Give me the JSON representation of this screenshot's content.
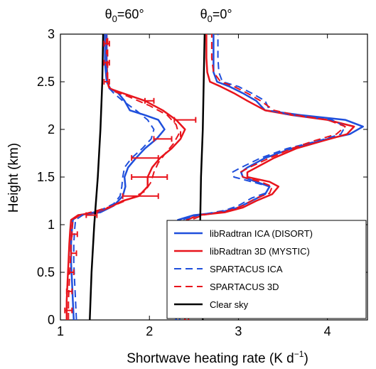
{
  "chart_data": {
    "type": "line",
    "xlabel": "Shortwave heating rate (K d",
    "xlabel_sup": "−1",
    "xlabel_end": ")",
    "ylabel": "Height (km)",
    "xlim": [
      1,
      4.45
    ],
    "ylim": [
      0,
      3
    ],
    "xticks": [
      1,
      2,
      3,
      4
    ],
    "yticks": [
      0,
      0.5,
      1,
      1.5,
      2,
      2.5,
      3
    ],
    "legend_position": "bottom-right",
    "annotations": [
      {
        "theta": "θ",
        "sub": "0",
        "rest": "=60°",
        "x": 1.72
      },
      {
        "theta": "θ",
        "sub": "0",
        "rest": "=0°",
        "x": 2.75
      }
    ],
    "series": [
      {
        "name": "libRadtran ICA (DISORT)",
        "color": "#1f4fdc",
        "dash": "solid",
        "width": 2.5,
        "profiles": [
          [
            [
              1.15,
              0.0
            ],
            [
              1.14,
              0.2
            ],
            [
              1.13,
              0.4
            ],
            [
              1.12,
              0.6
            ],
            [
              1.12,
              0.8
            ],
            [
              1.13,
              0.95
            ],
            [
              1.14,
              1.05
            ],
            [
              1.2,
              1.1
            ],
            [
              1.45,
              1.13
            ],
            [
              1.6,
              1.2
            ],
            [
              1.7,
              1.3
            ],
            [
              1.73,
              1.4
            ],
            [
              1.72,
              1.5
            ],
            [
              1.76,
              1.6
            ],
            [
              1.85,
              1.7
            ],
            [
              1.95,
              1.8
            ],
            [
              2.08,
              1.9
            ],
            [
              2.17,
              2.0
            ],
            [
              2.1,
              2.1
            ],
            [
              1.95,
              2.15
            ],
            [
              1.78,
              2.2
            ],
            [
              1.72,
              2.3
            ],
            [
              1.65,
              2.38
            ],
            [
              1.56,
              2.43
            ],
            [
              1.52,
              2.5
            ],
            [
              1.5,
              2.7
            ],
            [
              1.5,
              3.0
            ]
          ],
          [
            [
              2.3,
              0.0
            ],
            [
              2.29,
              0.2
            ],
            [
              2.29,
              0.4
            ],
            [
              2.29,
              0.6
            ],
            [
              2.29,
              0.8
            ],
            [
              2.3,
              0.95
            ],
            [
              2.32,
              1.05
            ],
            [
              2.5,
              1.1
            ],
            [
              2.8,
              1.13
            ],
            [
              3.0,
              1.18
            ],
            [
              3.15,
              1.25
            ],
            [
              3.3,
              1.32
            ],
            [
              3.35,
              1.4
            ],
            [
              3.2,
              1.45
            ],
            [
              3.05,
              1.5
            ],
            [
              3.03,
              1.55
            ],
            [
              3.1,
              1.6
            ],
            [
              3.3,
              1.7
            ],
            [
              3.6,
              1.8
            ],
            [
              4.0,
              1.9
            ],
            [
              4.25,
              1.95
            ],
            [
              4.4,
              2.03
            ],
            [
              4.2,
              2.1
            ],
            [
              3.7,
              2.15
            ],
            [
              3.3,
              2.2
            ],
            [
              3.2,
              2.3
            ],
            [
              3.05,
              2.38
            ],
            [
              2.9,
              2.45
            ],
            [
              2.76,
              2.5
            ],
            [
              2.72,
              2.6
            ],
            [
              2.72,
              2.75
            ],
            [
              2.72,
              3.0
            ]
          ]
        ]
      },
      {
        "name": "libRadtran 3D (MYSTIC)",
        "color": "#e8141c",
        "dash": "solid",
        "width": 2.5,
        "profiles": [
          [
            [
              1.07,
              0.0
            ],
            [
              1.07,
              0.2
            ],
            [
              1.08,
              0.4
            ],
            [
              1.09,
              0.6
            ],
            [
              1.1,
              0.8
            ],
            [
              1.11,
              0.95
            ],
            [
              1.12,
              1.05
            ],
            [
              1.2,
              1.1
            ],
            [
              1.4,
              1.13
            ],
            [
              1.55,
              1.18
            ],
            [
              1.7,
              1.25
            ],
            [
              1.88,
              1.3
            ],
            [
              1.98,
              1.4
            ],
            [
              1.98,
              1.5
            ],
            [
              2.03,
              1.6
            ],
            [
              2.12,
              1.7
            ],
            [
              2.25,
              1.8
            ],
            [
              2.35,
              1.9
            ],
            [
              2.4,
              2.0
            ],
            [
              2.3,
              2.1
            ],
            [
              2.15,
              2.2
            ],
            [
              1.95,
              2.3
            ],
            [
              1.7,
              2.38
            ],
            [
              1.55,
              2.43
            ],
            [
              1.53,
              2.5
            ],
            [
              1.52,
              2.7
            ],
            [
              1.52,
              3.0
            ]
          ],
          [
            [
              2.4,
              0.0
            ],
            [
              2.39,
              0.2
            ],
            [
              2.39,
              0.4
            ],
            [
              2.4,
              0.6
            ],
            [
              2.4,
              0.8
            ],
            [
              2.41,
              0.95
            ],
            [
              2.42,
              1.05
            ],
            [
              2.55,
              1.1
            ],
            [
              2.85,
              1.13
            ],
            [
              3.05,
              1.18
            ],
            [
              3.2,
              1.25
            ],
            [
              3.38,
              1.32
            ],
            [
              3.45,
              1.4
            ],
            [
              3.35,
              1.45
            ],
            [
              3.1,
              1.5
            ],
            [
              3.1,
              1.55
            ],
            [
              3.2,
              1.6
            ],
            [
              3.4,
              1.7
            ],
            [
              3.65,
              1.8
            ],
            [
              3.95,
              1.88
            ],
            [
              4.22,
              1.95
            ],
            [
              4.3,
              2.03
            ],
            [
              4.0,
              2.1
            ],
            [
              3.6,
              2.15
            ],
            [
              3.3,
              2.2
            ],
            [
              3.1,
              2.3
            ],
            [
              2.95,
              2.38
            ],
            [
              2.8,
              2.45
            ],
            [
              2.68,
              2.5
            ],
            [
              2.65,
              2.6
            ],
            [
              2.64,
              2.75
            ],
            [
              2.64,
              3.0
            ]
          ]
        ]
      },
      {
        "name": "SPARTACUS ICA",
        "color": "#1f4fdc",
        "dash": "10,6",
        "width": 2,
        "profiles": [
          [
            [
              1.18,
              0.0
            ],
            [
              1.17,
              0.2
            ],
            [
              1.16,
              0.4
            ],
            [
              1.15,
              0.6
            ],
            [
              1.15,
              0.8
            ],
            [
              1.16,
              0.95
            ],
            [
              1.17,
              1.05
            ],
            [
              1.25,
              1.1
            ],
            [
              1.45,
              1.15
            ],
            [
              1.6,
              1.22
            ],
            [
              1.67,
              1.3
            ],
            [
              1.69,
              1.4
            ],
            [
              1.7,
              1.5
            ],
            [
              1.72,
              1.6
            ],
            [
              1.8,
              1.7
            ],
            [
              1.92,
              1.8
            ],
            [
              2.02,
              1.9
            ],
            [
              2.05,
              2.0
            ],
            [
              1.98,
              2.1
            ],
            [
              1.85,
              2.2
            ],
            [
              1.7,
              2.3
            ],
            [
              1.6,
              2.38
            ],
            [
              1.55,
              2.43
            ],
            [
              1.52,
              2.5
            ],
            [
              1.52,
              2.7
            ],
            [
              1.52,
              3.0
            ]
          ],
          [
            [
              2.34,
              0.0
            ],
            [
              2.33,
              0.2
            ],
            [
              2.32,
              0.4
            ],
            [
              2.32,
              0.6
            ],
            [
              2.32,
              0.8
            ],
            [
              2.34,
              0.95
            ],
            [
              2.36,
              1.05
            ],
            [
              2.55,
              1.1
            ],
            [
              2.85,
              1.15
            ],
            [
              3.0,
              1.2
            ],
            [
              3.15,
              1.28
            ],
            [
              3.3,
              1.33
            ],
            [
              3.35,
              1.4
            ],
            [
              3.15,
              1.45
            ],
            [
              2.95,
              1.5
            ],
            [
              2.93,
              1.55
            ],
            [
              3.03,
              1.6
            ],
            [
              3.25,
              1.7
            ],
            [
              3.55,
              1.8
            ],
            [
              3.9,
              1.88
            ],
            [
              4.15,
              1.95
            ],
            [
              4.2,
              2.03
            ],
            [
              4.05,
              2.1
            ],
            [
              3.6,
              2.15
            ],
            [
              3.35,
              2.2
            ],
            [
              3.3,
              2.3
            ],
            [
              3.15,
              2.38
            ],
            [
              3.0,
              2.45
            ],
            [
              2.82,
              2.5
            ],
            [
              2.78,
              2.6
            ],
            [
              2.77,
              2.75
            ],
            [
              2.77,
              3.0
            ]
          ]
        ]
      },
      {
        "name": "SPARTACUS 3D",
        "color": "#e8141c",
        "dash": "10,6",
        "width": 2,
        "profiles": [
          [
            [
              1.09,
              0.0
            ],
            [
              1.09,
              0.2
            ],
            [
              1.1,
              0.4
            ],
            [
              1.11,
              0.6
            ],
            [
              1.12,
              0.8
            ],
            [
              1.13,
              0.95
            ],
            [
              1.14,
              1.05
            ],
            [
              1.22,
              1.1
            ],
            [
              1.42,
              1.15
            ],
            [
              1.6,
              1.2
            ],
            [
              1.8,
              1.28
            ],
            [
              1.95,
              1.35
            ],
            [
              2.02,
              1.45
            ],
            [
              2.05,
              1.55
            ],
            [
              2.1,
              1.65
            ],
            [
              2.18,
              1.75
            ],
            [
              2.27,
              1.85
            ],
            [
              2.33,
              1.95
            ],
            [
              2.3,
              2.05
            ],
            [
              2.2,
              2.15
            ],
            [
              2.0,
              2.25
            ],
            [
              1.75,
              2.35
            ],
            [
              1.6,
              2.4
            ],
            [
              1.54,
              2.45
            ],
            [
              1.53,
              2.5
            ],
            [
              1.53,
              2.7
            ],
            [
              1.53,
              3.0
            ]
          ],
          [
            [
              2.44,
              0.0
            ],
            [
              2.43,
              0.2
            ],
            [
              2.43,
              0.4
            ],
            [
              2.44,
              0.6
            ],
            [
              2.45,
              0.8
            ],
            [
              2.46,
              0.95
            ],
            [
              2.47,
              1.05
            ],
            [
              2.6,
              1.1
            ],
            [
              2.9,
              1.15
            ],
            [
              3.05,
              1.2
            ],
            [
              3.2,
              1.28
            ],
            [
              3.35,
              1.33
            ],
            [
              3.38,
              1.4
            ],
            [
              3.25,
              1.45
            ],
            [
              3.05,
              1.5
            ],
            [
              3.02,
              1.55
            ],
            [
              3.12,
              1.6
            ],
            [
              3.35,
              1.7
            ],
            [
              3.6,
              1.8
            ],
            [
              3.85,
              1.88
            ],
            [
              4.1,
              1.95
            ],
            [
              4.2,
              2.03
            ],
            [
              4.0,
              2.1
            ],
            [
              3.65,
              2.15
            ],
            [
              3.4,
              2.2
            ],
            [
              3.25,
              2.3
            ],
            [
              3.1,
              2.38
            ],
            [
              2.95,
              2.45
            ],
            [
              2.8,
              2.5
            ],
            [
              2.72,
              2.6
            ],
            [
              2.7,
              2.75
            ],
            [
              2.7,
              3.0
            ]
          ]
        ]
      },
      {
        "name": "Clear sky",
        "color": "#000000",
        "dash": "solid",
        "width": 2.5,
        "profiles": [
          [
            [
              1.33,
              0.0
            ],
            [
              1.35,
              0.5
            ],
            [
              1.38,
              1.0
            ],
            [
              1.42,
              1.5
            ],
            [
              1.45,
              2.0
            ],
            [
              1.47,
              2.5
            ],
            [
              1.48,
              3.0
            ]
          ],
          [
            [
              2.6,
              0.0
            ],
            [
              2.58,
              0.5
            ],
            [
              2.57,
              1.0
            ],
            [
              2.58,
              1.5
            ],
            [
              2.6,
              2.0
            ],
            [
              2.61,
              2.5
            ],
            [
              2.62,
              3.0
            ]
          ]
        ]
      }
    ],
    "error_bars": {
      "color": "#e8141c",
      "points": [
        {
          "x": 1.09,
          "y": 0.1,
          "err": 0.04
        },
        {
          "x": 1.1,
          "y": 0.3,
          "err": 0.03
        },
        {
          "x": 1.12,
          "y": 0.5,
          "err": 0.03
        },
        {
          "x": 1.15,
          "y": 0.7,
          "err": 0.03
        },
        {
          "x": 1.16,
          "y": 0.9,
          "err": 0.03
        },
        {
          "x": 1.35,
          "y": 1.1,
          "err": 0.06
        },
        {
          "x": 1.9,
          "y": 1.3,
          "err": 0.2
        },
        {
          "x": 2.0,
          "y": 1.5,
          "err": 0.2
        },
        {
          "x": 1.95,
          "y": 1.7,
          "err": 0.15
        },
        {
          "x": 2.15,
          "y": 1.9,
          "err": 0.1
        },
        {
          "x": 2.4,
          "y": 2.1,
          "err": 0.12
        },
        {
          "x": 2.35,
          "y": 1.95,
          "err": 0.0
        },
        {
          "x": 2.0,
          "y": 2.3,
          "err": 0.05
        },
        {
          "x": 1.52,
          "y": 2.5,
          "err": 0.03
        },
        {
          "x": 1.52,
          "y": 2.7,
          "err": 0.03
        },
        {
          "x": 1.52,
          "y": 2.9,
          "err": 0.03
        }
      ]
    }
  }
}
